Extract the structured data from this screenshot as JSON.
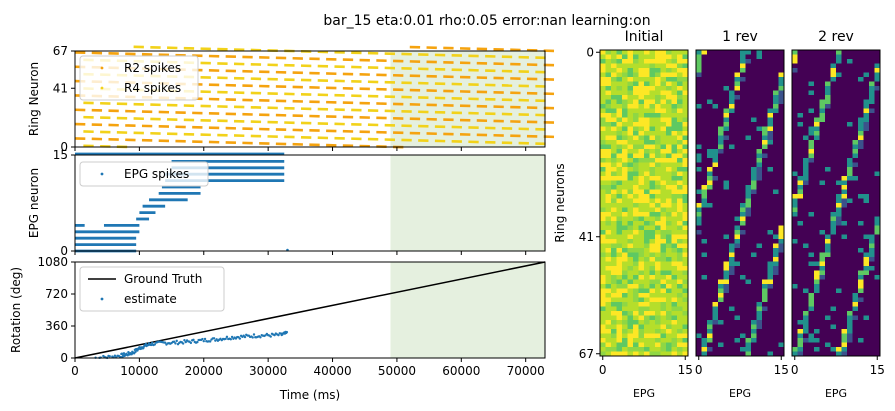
{
  "figure_title": "bar_15 eta:0.01 rho:0.05 error:nan learning:on",
  "colors": {
    "r2": "#f5a30f",
    "r4": "#f2d21a",
    "epg": "#1f77b4",
    "ground_truth": "#000000",
    "shade": "#e5f0df",
    "viridis": [
      "#440154",
      "#3b528b",
      "#21918c",
      "#5ec962",
      "#fde725"
    ]
  },
  "chart_data": [
    {
      "id": "ring-raster",
      "type": "scatter",
      "title": "",
      "xlabel": "",
      "ylabel": "Ring Neuron",
      "xlim": [
        0,
        73000
      ],
      "ylim": [
        0,
        67
      ],
      "yticks": [
        "0",
        "41",
        "67"
      ],
      "shaded_region": [
        49000,
        73000
      ],
      "legend": {
        "placement": "upper-left",
        "entries": [
          "R2 spikes",
          "R4 spikes"
        ]
      },
      "series": [
        {
          "name": "R2 spikes",
          "color": "#f5a30f",
          "pattern": "descending diagonal bands",
          "bands_start_neuron": [
            66,
            56,
            46,
            36,
            26,
            16,
            6
          ],
          "slope_neurons_per_s": -0.12
        },
        {
          "name": "R4 spikes",
          "color": "#f2d21a",
          "pattern": "descending diagonal bands",
          "bands_start_neuron": [
            61,
            51,
            41,
            31,
            21,
            11,
            1
          ],
          "slope_neurons_per_s": -0.12
        }
      ]
    },
    {
      "id": "epg-raster",
      "type": "scatter",
      "title": "",
      "xlabel": "",
      "ylabel": "EPG neuron",
      "xlim": [
        0,
        73000
      ],
      "ylim": [
        0,
        15
      ],
      "yticks": [
        "0",
        "15"
      ],
      "shaded_region": [
        49000,
        73000
      ],
      "legend": {
        "placement": "upper-left",
        "entries": [
          "EPG spikes"
        ]
      },
      "series": [
        {
          "name": "EPG spikes",
          "color": "#1f77b4",
          "rows": [
            {
              "neuron": 0,
              "start": 0,
              "end": 9500
            },
            {
              "neuron": 1,
              "start": 0,
              "end": 9500
            },
            {
              "neuron": 2,
              "start": 0,
              "end": 9500
            },
            {
              "neuron": 3,
              "start": 0,
              "end": 10000
            },
            {
              "neuron": 4,
              "start": 0,
              "end": 1500
            },
            {
              "neuron": 4,
              "start": 4500,
              "end": 10000
            },
            {
              "neuron": 5,
              "start": 9500,
              "end": 11500
            },
            {
              "neuron": 6,
              "start": 10000,
              "end": 12500
            },
            {
              "neuron": 7,
              "start": 10500,
              "end": 14000
            },
            {
              "neuron": 8,
              "start": 11500,
              "end": 17500
            },
            {
              "neuron": 9,
              "start": 13000,
              "end": 19500
            },
            {
              "neuron": 10,
              "start": 13500,
              "end": 19500
            },
            {
              "neuron": 11,
              "start": 14000,
              "end": 32500
            },
            {
              "neuron": 12,
              "start": 14000,
              "end": 32500
            },
            {
              "neuron": 13,
              "start": 15000,
              "end": 32500
            },
            {
              "neuron": 14,
              "start": 15000,
              "end": 32500
            },
            {
              "neuron": 15,
              "start": 0,
              "end": 32500
            }
          ]
        }
      ]
    },
    {
      "id": "rotation",
      "type": "line",
      "title": "",
      "xlabel": "Time (ms)",
      "ylabel": "Rotation (deg)",
      "xlim": [
        0,
        73000
      ],
      "ylim": [
        0,
        1080
      ],
      "xticks": [
        "0",
        "10000",
        "20000",
        "30000",
        "40000",
        "50000",
        "60000",
        "70000"
      ],
      "yticks": [
        "0",
        "360",
        "720",
        "1080"
      ],
      "shaded_region": [
        49000,
        73000
      ],
      "legend": {
        "placement": "upper-left",
        "entries": [
          "Ground Truth",
          "estimate"
        ]
      },
      "series": [
        {
          "name": "Ground Truth",
          "x": [
            0,
            73000
          ],
          "y": [
            0,
            1080
          ]
        },
        {
          "name": "estimate",
          "x": [
            3000,
            5000,
            7000,
            8000,
            9000,
            10000,
            11000,
            12000,
            14000,
            16000,
            18000,
            20000,
            22000,
            24000,
            26000,
            28000,
            30000,
            32000,
            33000
          ],
          "y": [
            0,
            10,
            25,
            40,
            60,
            110,
            140,
            160,
            170,
            175,
            185,
            200,
            210,
            230,
            240,
            250,
            255,
            260,
            280
          ]
        }
      ]
    },
    {
      "id": "heatmap-initial",
      "type": "heatmap",
      "title": "Initial",
      "xlabel": "EPG",
      "ylabel": "Ring neurons",
      "xticks": [
        "0",
        "15"
      ],
      "yticks": [
        "0",
        "41",
        "67"
      ],
      "rows": 68,
      "cols": 16,
      "pattern": "mostly high weights (yellow-green), uniform noise"
    },
    {
      "id": "heatmap-1rev",
      "type": "heatmap",
      "title": "1 rev",
      "xlabel": "EPG",
      "xticks": [
        "0",
        "15"
      ],
      "rows": 68,
      "cols": 16,
      "pattern": "mostly low weights (purple) with diagonal stripes of high weights"
    },
    {
      "id": "heatmap-2rev",
      "type": "heatmap",
      "title": "2 rev",
      "xlabel": "EPG",
      "xticks": [
        "0",
        "15"
      ],
      "rows": 68,
      "cols": 16,
      "pattern": "mostly low weights (purple) with diagonal stripes of high weights"
    }
  ]
}
